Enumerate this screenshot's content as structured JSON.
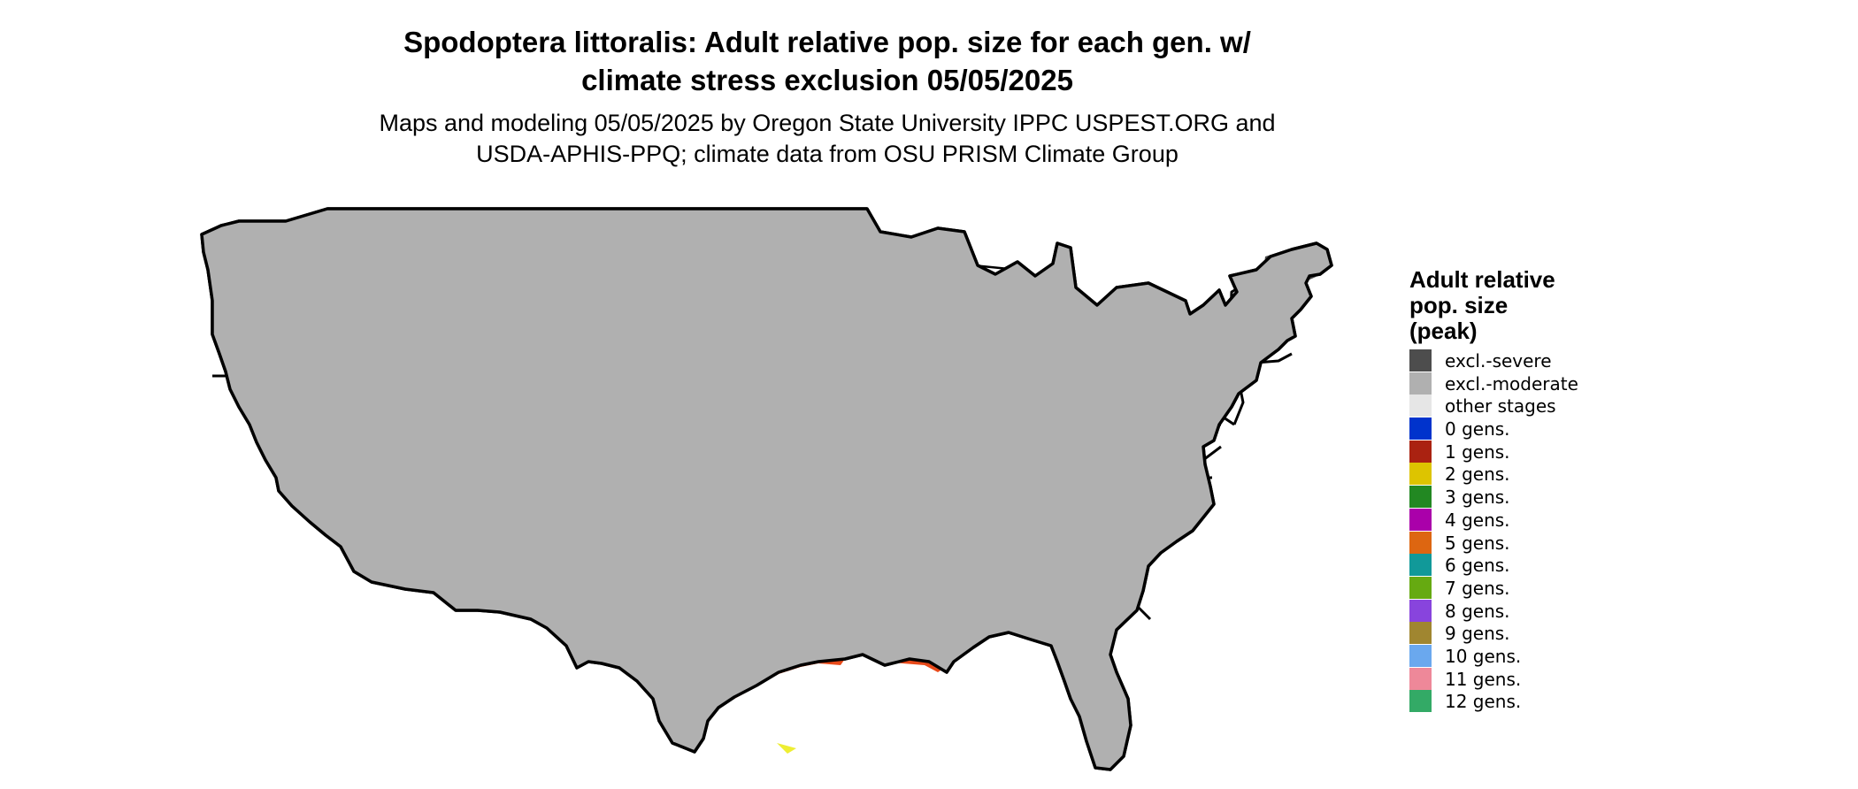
{
  "title": {
    "line1": "Spodoptera littoralis: Adult relative pop. size for each gen. w/",
    "line2": "climate stress exclusion 05/05/2025"
  },
  "subtitle": {
    "line1": "Maps and modeling 05/05/2025 by Oregon State University IPPC USPEST.ORG and",
    "line2": "USDA-APHIS-PPQ; climate data from OSU PRISM Climate Group"
  },
  "legend": {
    "title_line1": "Adult relative",
    "title_line2": "pop. size",
    "title_line3": "(peak)",
    "items": [
      {
        "label": "excl.-severe",
        "color": "#4d4d4d"
      },
      {
        "label": "excl.-moderate",
        "color": "#b0b0b0"
      },
      {
        "label": "other stages",
        "color": "#e6e6e6"
      },
      {
        "label": "0 gens.",
        "color": "#0033cc"
      },
      {
        "label": "1 gens.",
        "color": "#aa2211"
      },
      {
        "label": "2 gens.",
        "color": "#ddc400"
      },
      {
        "label": "3 gens.",
        "color": "#228822"
      },
      {
        "label": "4 gens.",
        "color": "#aa00aa"
      },
      {
        "label": "5 gens.",
        "color": "#dd6611"
      },
      {
        "label": "6 gens.",
        "color": "#119999"
      },
      {
        "label": "7 gens.",
        "color": "#66aa11"
      },
      {
        "label": "8 gens.",
        "color": "#8844dd"
      },
      {
        "label": "9 gens.",
        "color": "#a08630"
      },
      {
        "label": "10 gens.",
        "color": "#6aa8ee"
      },
      {
        "label": "11 gens.",
        "color": "#ee8899"
      },
      {
        "label": "12 gens.",
        "color": "#33aa66"
      }
    ]
  },
  "map_colors": {
    "water": "#ffffff",
    "border": "#000000",
    "excl_severe": "#4d4d4d",
    "excl_moderate": "#b0b0b0",
    "other_stages": "#e6e6e6",
    "gens_1_orange": "#e84a1a",
    "gens_light_blue": "#22aaee",
    "gens_blue": "#1a8ae6",
    "gens_yellow": "#eeee33"
  }
}
